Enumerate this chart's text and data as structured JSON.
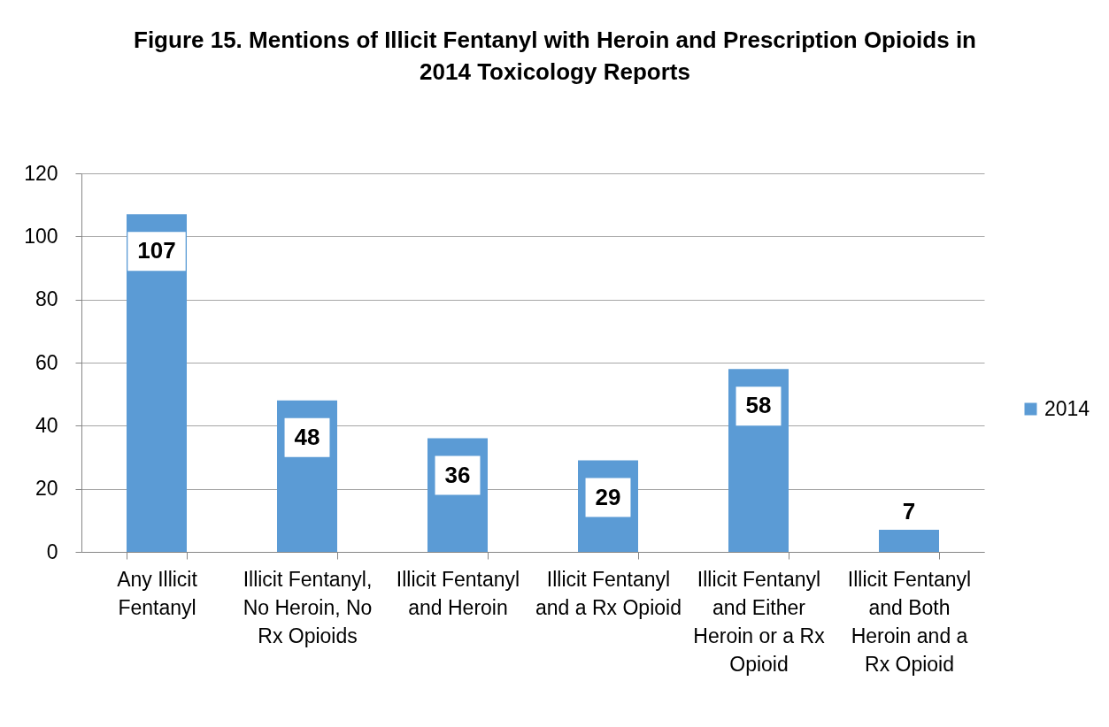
{
  "chart_data": {
    "type": "bar",
    "title": "Figure 15. Mentions of Illicit Fentanyl with Heroin and Prescription Opioids in 2014 Toxicology Reports",
    "categories": [
      "Any Illicit Fentanyl",
      "Illicit Fentanyl, No Heroin, No Rx Opioids",
      "Illicit Fentanyl and Heroin",
      "Illicit Fentanyl and a Rx Opioid",
      "Illicit Fentanyl and Either Heroin or a Rx Opioid",
      "Illicit Fentanyl and Both Heroin and a Rx Opioid"
    ],
    "series": [
      {
        "name": "2014",
        "color": "#5b9bd5",
        "values": [
          107,
          48,
          36,
          29,
          58,
          7
        ]
      }
    ],
    "ylim": [
      0,
      120
    ],
    "yticks": [
      0,
      20,
      40,
      60,
      80,
      100,
      120
    ],
    "grid": "y",
    "legend": "right",
    "data_labels": true
  }
}
